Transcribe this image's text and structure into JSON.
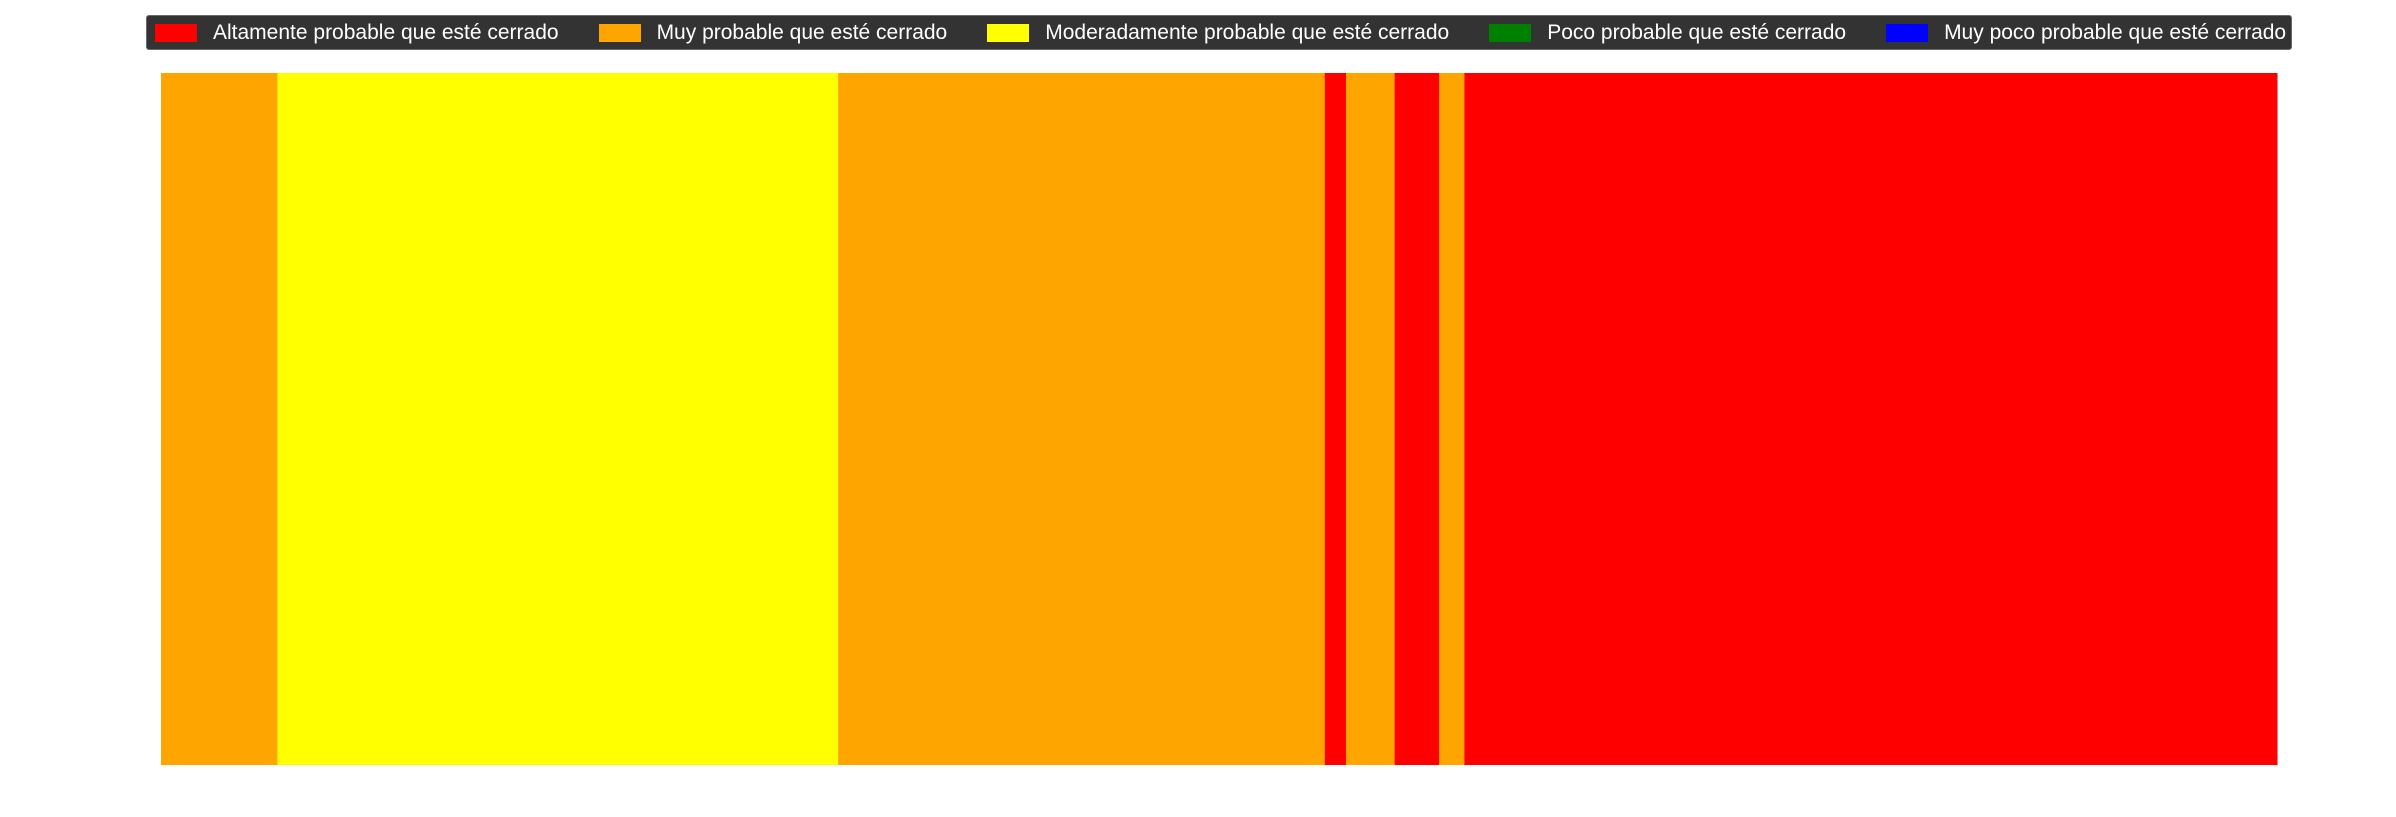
{
  "chart_data": {
    "type": "bar",
    "orientation": "horizontal-stacked-strip",
    "title": "",
    "xlabel": "",
    "ylabel": "",
    "legend_position": "top",
    "axes_visible": false,
    "grid": false,
    "xlim": [
      0,
      100
    ],
    "categories": [
      "Altamente probable que esté cerrado",
      "Muy probable que esté cerrado",
      "Moderadamente probable que esté cerrado",
      "Poco probable que esté cerrado",
      "Muy poco probable que esté cerrado"
    ],
    "colors": {
      "Altamente probable que esté cerrado": "#ff0000",
      "Muy probable que esté cerrado": "#ffa500",
      "Moderadamente probable que esté cerrado": "#ffff00",
      "Poco probable que esté cerrado": "#008000",
      "Muy poco probable que esté cerrado": "#0000ff"
    },
    "segments": [
      {
        "category": "Muy probable que esté cerrado",
        "start": 0.0,
        "end": 5.5
      },
      {
        "category": "Moderadamente probable que esté cerrado",
        "start": 5.5,
        "end": 32.0
      },
      {
        "category": "Muy probable que esté cerrado",
        "start": 32.0,
        "end": 55.0
      },
      {
        "category": "Altamente probable que esté cerrado",
        "start": 55.0,
        "end": 56.0
      },
      {
        "category": "Muy probable que esté cerrado",
        "start": 56.0,
        "end": 58.3
      },
      {
        "category": "Altamente probable que esté cerrado",
        "start": 58.3,
        "end": 60.4
      },
      {
        "category": "Muy probable que esté cerrado",
        "start": 60.4,
        "end": 61.6
      },
      {
        "category": "Altamente probable que esté cerrado",
        "start": 61.6,
        "end": 100.0
      }
    ]
  }
}
